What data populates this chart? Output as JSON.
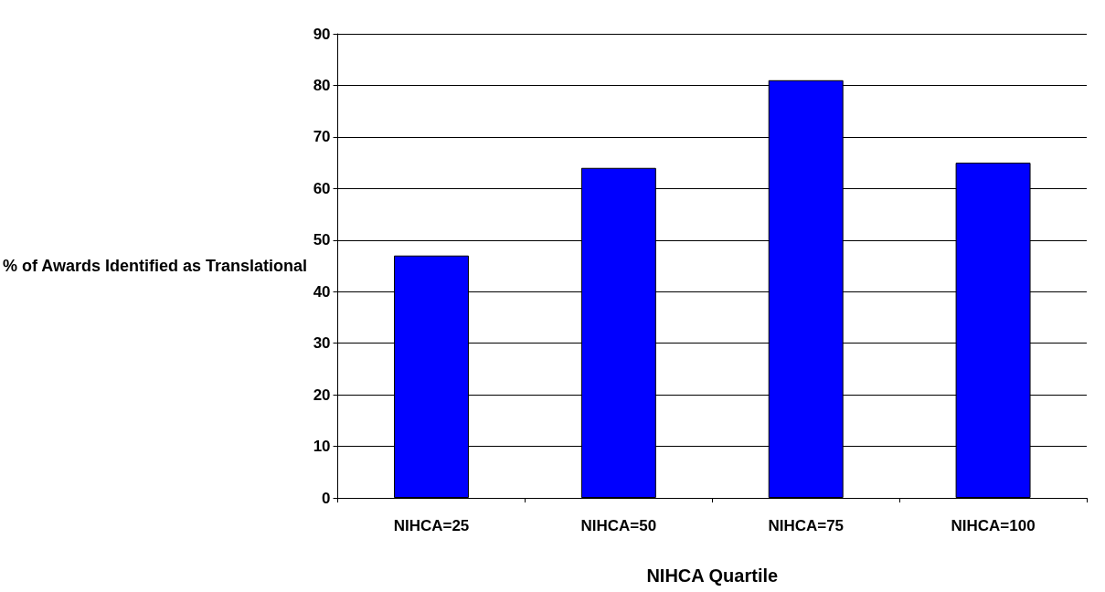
{
  "chart_data": {
    "type": "bar",
    "xlabel": "NIHCA Quartile",
    "ylabel": "% of Awards Identified as Translational",
    "categories": [
      "NIHCA=25",
      "NIHCA=50",
      "NIHCA=75",
      "NIHCA=100"
    ],
    "values": [
      47,
      64,
      81,
      65
    ],
    "color": "#0000ff",
    "ylim": [
      0,
      90
    ],
    "yticks": [
      0,
      10,
      20,
      30,
      40,
      50,
      60,
      70,
      80,
      90
    ],
    "grid": "y"
  }
}
